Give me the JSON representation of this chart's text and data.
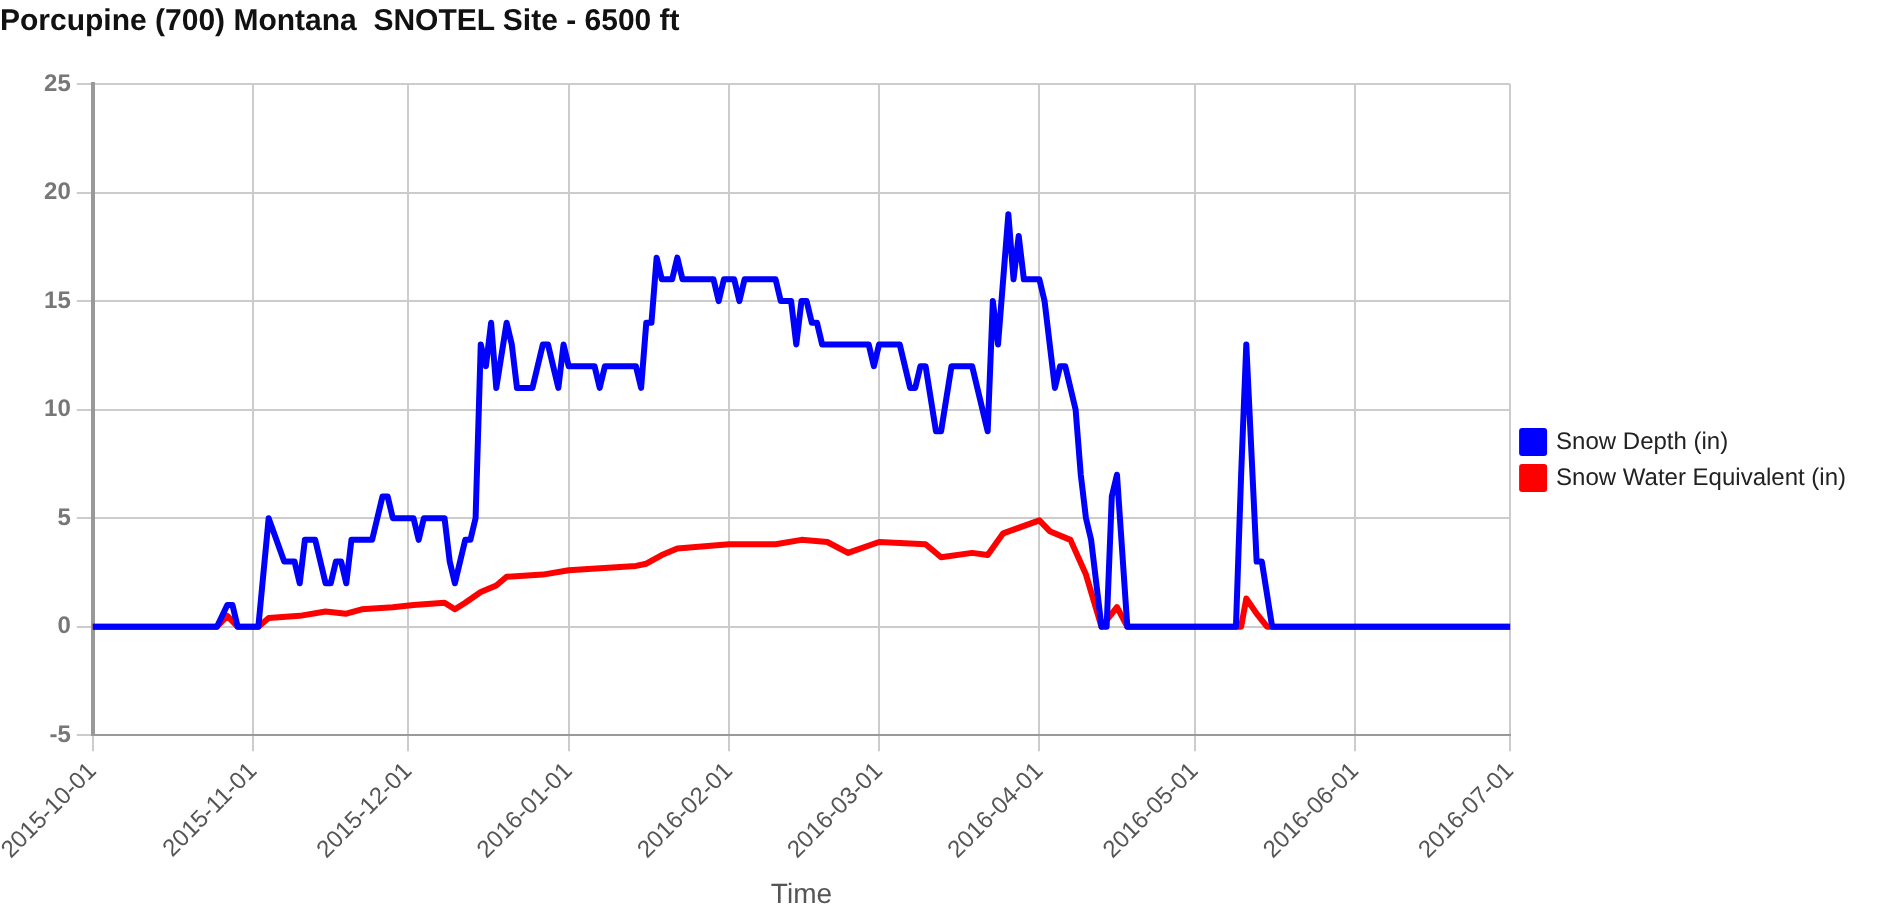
{
  "chart_data": {
    "type": "line",
    "title": "Porcupine (700) Montana  SNOTEL Site - 6500 ft",
    "xlabel": "Time",
    "xlim": [
      "2015-10-01",
      "2016-07-01"
    ],
    "xticks": [
      "2015-10-01",
      "2015-11-01",
      "2015-12-01",
      "2016-01-01",
      "2016-02-01",
      "2016-03-01",
      "2016-04-01",
      "2016-05-01",
      "2016-06-01",
      "2016-07-01"
    ],
    "ylim": [
      -5,
      25
    ],
    "yticks": [
      -5,
      0,
      5,
      10,
      15,
      20,
      25
    ],
    "grid": true,
    "legend": "right",
    "marker": "none",
    "line_style": "solid",
    "series": [
      {
        "name": "Snow Depth (in)",
        "color": "#0000ff",
        "x": [
          "2015-10-01",
          "2015-10-25",
          "2015-10-27",
          "2015-10-28",
          "2015-10-29",
          "2015-11-02",
          "2015-11-04",
          "2015-11-07",
          "2015-11-09",
          "2015-11-10",
          "2015-11-11",
          "2015-11-13",
          "2015-11-15",
          "2015-11-16",
          "2015-11-17",
          "2015-11-18",
          "2015-11-19",
          "2015-11-20",
          "2015-11-24",
          "2015-11-26",
          "2015-11-27",
          "2015-11-28",
          "2015-12-02",
          "2015-12-03",
          "2015-12-04",
          "2015-12-08",
          "2015-12-09",
          "2015-12-10",
          "2015-12-12",
          "2015-12-13",
          "2015-12-14",
          "2015-12-15",
          "2015-12-16",
          "2015-12-17",
          "2015-12-18",
          "2015-12-20",
          "2015-12-21",
          "2015-12-22",
          "2015-12-25",
          "2015-12-27",
          "2015-12-28",
          "2015-12-29",
          "2015-12-30",
          "2015-12-31",
          "2016-01-01",
          "2016-01-06",
          "2016-01-07",
          "2016-01-08",
          "2016-01-14",
          "2016-01-15",
          "2016-01-16",
          "2016-01-17",
          "2016-01-18",
          "2016-01-19",
          "2016-01-21",
          "2016-01-22",
          "2016-01-23",
          "2016-01-29",
          "2016-01-30",
          "2016-01-31",
          "2016-02-02",
          "2016-02-03",
          "2016-02-04",
          "2016-02-10",
          "2016-02-11",
          "2016-02-13",
          "2016-02-14",
          "2016-02-15",
          "2016-02-16",
          "2016-02-17",
          "2016-02-18",
          "2016-02-19",
          "2016-02-28",
          "2016-02-29",
          "2016-03-01",
          "2016-03-05",
          "2016-03-07",
          "2016-03-08",
          "2016-03-09",
          "2016-03-10",
          "2016-03-12",
          "2016-03-13",
          "2016-03-15",
          "2016-03-19",
          "2016-03-22",
          "2016-03-23",
          "2016-03-24",
          "2016-03-26",
          "2016-03-27",
          "2016-03-28",
          "2016-03-29",
          "2016-04-01",
          "2016-04-02",
          "2016-04-04",
          "2016-04-05",
          "2016-04-06",
          "2016-04-07",
          "2016-04-08",
          "2016-04-09",
          "2016-04-10",
          "2016-04-11",
          "2016-04-13",
          "2016-04-14",
          "2016-04-15",
          "2016-04-16",
          "2016-04-18",
          "2016-05-09",
          "2016-05-10",
          "2016-05-11",
          "2016-05-13",
          "2016-05-14",
          "2016-05-16",
          "2016-07-01"
        ],
        "values": [
          0,
          0,
          1,
          1,
          0,
          0,
          5,
          3,
          3,
          2,
          4,
          4,
          2,
          2,
          3,
          3,
          2,
          4,
          4,
          6,
          6,
          5,
          5,
          4,
          5,
          5,
          3,
          2,
          4,
          4,
          5,
          13,
          12,
          14,
          11,
          14,
          13,
          11,
          11,
          13,
          13,
          12,
          11,
          13,
          12,
          12,
          11,
          12,
          12,
          11,
          14,
          14,
          17,
          16,
          16,
          17,
          16,
          16,
          15,
          16,
          16,
          15,
          16,
          16,
          15,
          15,
          13,
          15,
          15,
          14,
          14,
          13,
          13,
          12,
          13,
          13,
          11,
          11,
          12,
          12,
          9,
          9,
          12,
          12,
          9,
          15,
          13,
          19,
          16,
          18,
          16,
          16,
          15,
          11,
          12,
          12,
          11,
          10,
          7,
          5,
          4,
          0,
          0,
          6,
          7,
          0,
          0,
          7,
          13,
          3,
          3,
          0,
          0
        ]
      },
      {
        "name": "Snow Water Equivalent (in)",
        "color": "#ff0000",
        "x": [
          "2015-10-01",
          "2015-10-25",
          "2015-10-27",
          "2015-10-29",
          "2015-11-02",
          "2015-11-04",
          "2015-11-10",
          "2015-11-15",
          "2015-11-19",
          "2015-11-22",
          "2015-11-28",
          "2015-12-02",
          "2015-12-08",
          "2015-12-10",
          "2015-12-12",
          "2015-12-15",
          "2015-12-18",
          "2015-12-20",
          "2015-12-27",
          "2016-01-01",
          "2016-01-14",
          "2016-01-16",
          "2016-01-19",
          "2016-01-22",
          "2016-02-01",
          "2016-02-10",
          "2016-02-15",
          "2016-02-20",
          "2016-02-24",
          "2016-03-01",
          "2016-03-10",
          "2016-03-13",
          "2016-03-19",
          "2016-03-22",
          "2016-03-25",
          "2016-04-01",
          "2016-04-03",
          "2016-04-07",
          "2016-04-10",
          "2016-04-13",
          "2016-04-16",
          "2016-04-18",
          "2016-05-10",
          "2016-05-11",
          "2016-05-13",
          "2016-05-15",
          "2016-07-01"
        ],
        "values": [
          0,
          0,
          0.5,
          0,
          0,
          0.4,
          0.5,
          0.7,
          0.6,
          0.8,
          0.9,
          1.0,
          1.1,
          0.8,
          1.1,
          1.6,
          1.9,
          2.3,
          2.4,
          2.6,
          2.8,
          2.9,
          3.3,
          3.6,
          3.8,
          3.8,
          4.0,
          3.9,
          3.4,
          3.9,
          3.8,
          3.2,
          3.4,
          3.3,
          4.3,
          4.9,
          4.4,
          4.0,
          2.4,
          0,
          0.9,
          0,
          0,
          1.3,
          0.6,
          0,
          0
        ]
      }
    ]
  }
}
